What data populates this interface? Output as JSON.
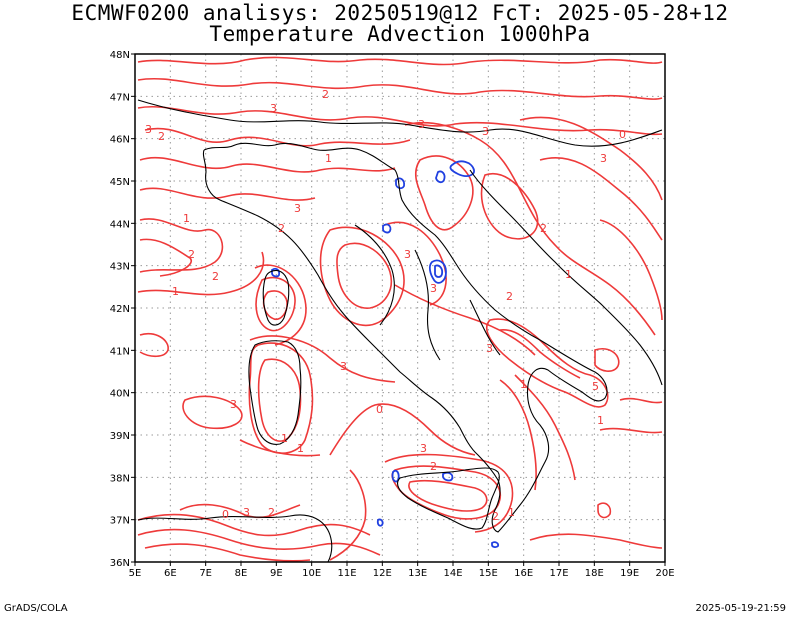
{
  "header": {
    "line1": "ECMWF0200 analisys: 20250519@12 FcT: 2025-05-28+12",
    "line2": "Temperature Advection 1000hPa"
  },
  "footer": {
    "left": "GrADS/COLA",
    "right": "2025-05-19-21:59"
  },
  "map": {
    "lon_labels": [
      "5E",
      "6E",
      "7E",
      "8E",
      "9E",
      "10E",
      "11E",
      "12E",
      "13E",
      "14E",
      "15E",
      "16E",
      "17E",
      "18E",
      "19E",
      "20E"
    ],
    "lat_labels": [
      "48N",
      "47N",
      "46N",
      "45N",
      "44N",
      "43N",
      "42N",
      "41N",
      "40N",
      "39N",
      "38N",
      "37N",
      "36N"
    ],
    "grid": true,
    "colors": {
      "positive": "#ee3a3a",
      "negative": "#2040e0",
      "coast": "#000000",
      "grid": "#9a9a9a"
    },
    "contour_labels": [
      "3",
      "2",
      "1",
      "0",
      "5"
    ]
  }
}
